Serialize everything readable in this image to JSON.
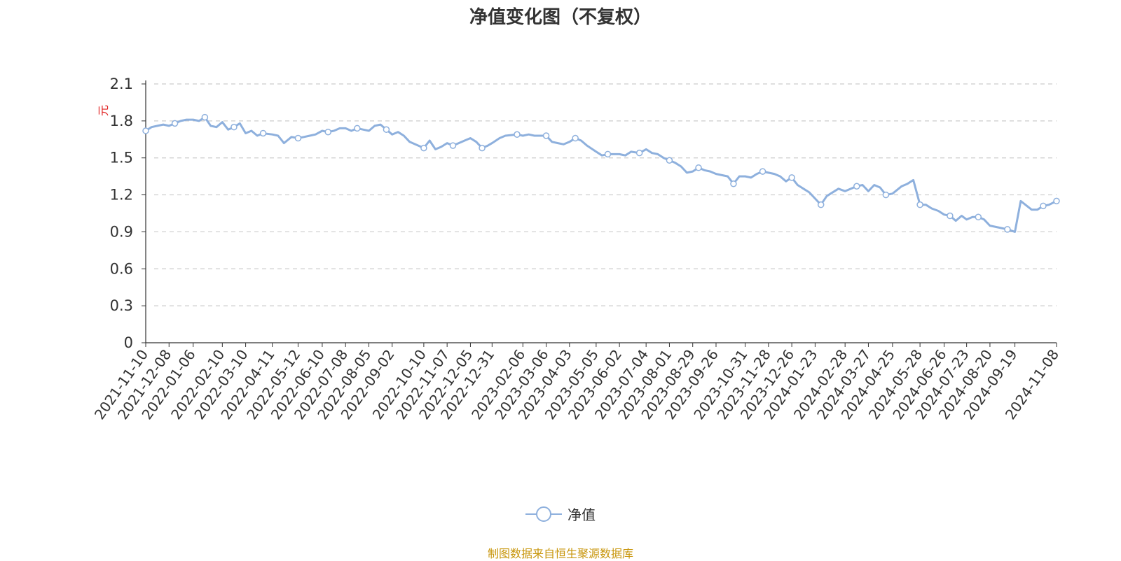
{
  "chart_data": {
    "type": "line",
    "title": "净值变化图（不复权）",
    "ylabel": "元",
    "ylim": [
      0,
      2.1
    ],
    "yticks": [
      "0",
      "0.3",
      "0.6",
      "0.9",
      "1.2",
      "1.5",
      "1.8",
      "2.1"
    ],
    "xticks": [
      "2021-11-10",
      "2021-12-08",
      "2022-01-06",
      "2022-02-10",
      "2022-03-10",
      "2022-04-11",
      "2022-05-12",
      "2022-06-10",
      "2022-07-08",
      "2022-08-05",
      "2022-09-02",
      "2022-10-10",
      "2022-11-07",
      "2022-12-05",
      "2022-12-31",
      "2023-02-06",
      "2023-03-06",
      "2023-04-03",
      "2023-05-05",
      "2023-06-02",
      "2023-07-04",
      "2023-08-01",
      "2023-08-29",
      "2023-09-26",
      "2023-10-31",
      "2023-11-28",
      "2023-12-26",
      "2024-01-23",
      "2024-02-28",
      "2024-03-27",
      "2024-04-25",
      "2024-05-28",
      "2024-06-26",
      "2024-07-23",
      "2024-08-20",
      "2024-09-19",
      "2024-11-08"
    ],
    "grid": true,
    "legend_position": "bottom",
    "series": [
      {
        "name": "净值",
        "color": "#8eb0dd",
        "x": [
          "2021-11-10",
          "2021-11-17",
          "2021-11-24",
          "2021-12-01",
          "2021-12-08",
          "2021-12-15",
          "2021-12-22",
          "2021-12-29",
          "2022-01-06",
          "2022-01-13",
          "2022-01-20",
          "2022-01-27",
          "2022-02-03",
          "2022-02-10",
          "2022-02-17",
          "2022-02-24",
          "2022-03-03",
          "2022-03-10",
          "2022-03-17",
          "2022-03-24",
          "2022-03-31",
          "2022-04-11",
          "2022-04-18",
          "2022-04-25",
          "2022-05-04",
          "2022-05-12",
          "2022-05-19",
          "2022-05-26",
          "2022-06-02",
          "2022-06-10",
          "2022-06-17",
          "2022-06-24",
          "2022-07-01",
          "2022-07-08",
          "2022-07-15",
          "2022-07-22",
          "2022-07-29",
          "2022-08-05",
          "2022-08-12",
          "2022-08-19",
          "2022-08-26",
          "2022-09-02",
          "2022-09-09",
          "2022-09-16",
          "2022-09-23",
          "2022-10-10",
          "2022-10-17",
          "2022-10-24",
          "2022-10-31",
          "2022-11-07",
          "2022-11-14",
          "2022-11-21",
          "2022-11-28",
          "2022-12-05",
          "2022-12-12",
          "2022-12-19",
          "2022-12-26",
          "2022-12-31",
          "2023-01-09",
          "2023-01-16",
          "2023-01-30",
          "2023-02-06",
          "2023-02-13",
          "2023-02-20",
          "2023-02-27",
          "2023-03-06",
          "2023-03-13",
          "2023-03-20",
          "2023-03-27",
          "2023-04-03",
          "2023-04-10",
          "2023-04-17",
          "2023-04-24",
          "2023-05-05",
          "2023-05-12",
          "2023-05-19",
          "2023-05-26",
          "2023-06-02",
          "2023-06-09",
          "2023-06-16",
          "2023-06-26",
          "2023-07-04",
          "2023-07-11",
          "2023-07-18",
          "2023-07-25",
          "2023-08-01",
          "2023-08-08",
          "2023-08-15",
          "2023-08-22",
          "2023-08-29",
          "2023-09-05",
          "2023-09-12",
          "2023-09-19",
          "2023-09-26",
          "2023-10-10",
          "2023-10-17",
          "2023-10-24",
          "2023-10-31",
          "2023-11-07",
          "2023-11-14",
          "2023-11-21",
          "2023-11-28",
          "2023-12-05",
          "2023-12-12",
          "2023-12-19",
          "2023-12-26",
          "2024-01-02",
          "2024-01-09",
          "2024-01-16",
          "2024-01-23",
          "2024-01-30",
          "2024-02-06",
          "2024-02-20",
          "2024-02-28",
          "2024-03-06",
          "2024-03-13",
          "2024-03-20",
          "2024-03-27",
          "2024-04-03",
          "2024-04-10",
          "2024-04-17",
          "2024-04-25",
          "2024-05-06",
          "2024-05-13",
          "2024-05-20",
          "2024-05-28",
          "2024-06-04",
          "2024-06-11",
          "2024-06-19",
          "2024-06-26",
          "2024-07-03",
          "2024-07-10",
          "2024-07-17",
          "2024-07-23",
          "2024-07-30",
          "2024-08-06",
          "2024-08-13",
          "2024-08-20",
          "2024-08-27",
          "2024-09-03",
          "2024-09-10",
          "2024-09-19",
          "2024-09-26",
          "2024-10-09",
          "2024-10-16",
          "2024-10-23",
          "2024-10-30",
          "2024-11-08"
        ],
        "values": [
          1.72,
          1.75,
          1.76,
          1.77,
          1.76,
          1.78,
          1.8,
          1.81,
          1.81,
          1.8,
          1.83,
          1.76,
          1.75,
          1.79,
          1.73,
          1.75,
          1.78,
          1.7,
          1.72,
          1.68,
          1.7,
          1.69,
          1.68,
          1.62,
          1.67,
          1.66,
          1.67,
          1.68,
          1.69,
          1.72,
          1.71,
          1.72,
          1.74,
          1.74,
          1.72,
          1.74,
          1.73,
          1.72,
          1.76,
          1.77,
          1.73,
          1.69,
          1.71,
          1.68,
          1.63,
          1.58,
          1.64,
          1.57,
          1.59,
          1.62,
          1.6,
          1.62,
          1.64,
          1.66,
          1.63,
          1.58,
          1.6,
          1.62,
          1.66,
          1.68,
          1.69,
          1.68,
          1.69,
          1.68,
          1.68,
          1.68,
          1.63,
          1.62,
          1.61,
          1.63,
          1.66,
          1.64,
          1.6,
          1.55,
          1.52,
          1.53,
          1.53,
          1.53,
          1.52,
          1.55,
          1.54,
          1.57,
          1.54,
          1.53,
          1.5,
          1.48,
          1.46,
          1.43,
          1.38,
          1.39,
          1.42,
          1.4,
          1.39,
          1.37,
          1.35,
          1.29,
          1.35,
          1.35,
          1.34,
          1.37,
          1.39,
          1.38,
          1.37,
          1.35,
          1.31,
          1.34,
          1.28,
          1.25,
          1.22,
          1.17,
          1.12,
          1.19,
          1.25,
          1.23,
          1.25,
          1.27,
          1.28,
          1.23,
          1.28,
          1.26,
          1.2,
          1.21,
          1.27,
          1.29,
          1.32,
          1.12,
          1.12,
          1.09,
          1.07,
          1.04,
          1.03,
          0.99,
          1.03,
          1.0,
          1.02,
          1.02,
          1.0,
          0.95,
          0.94,
          0.93,
          0.92,
          0.9,
          1.15,
          1.08,
          1.08,
          1.11,
          1.12,
          1.15
        ]
      }
    ]
  },
  "legend": {
    "label": "净值"
  },
  "footer": {
    "source": "制图数据来自恒生聚源数据库",
    "source_color": "#c8960c"
  },
  "colors": {
    "axis": "#333333",
    "grid": "#cccccc",
    "ylabel": "#e02020"
  }
}
